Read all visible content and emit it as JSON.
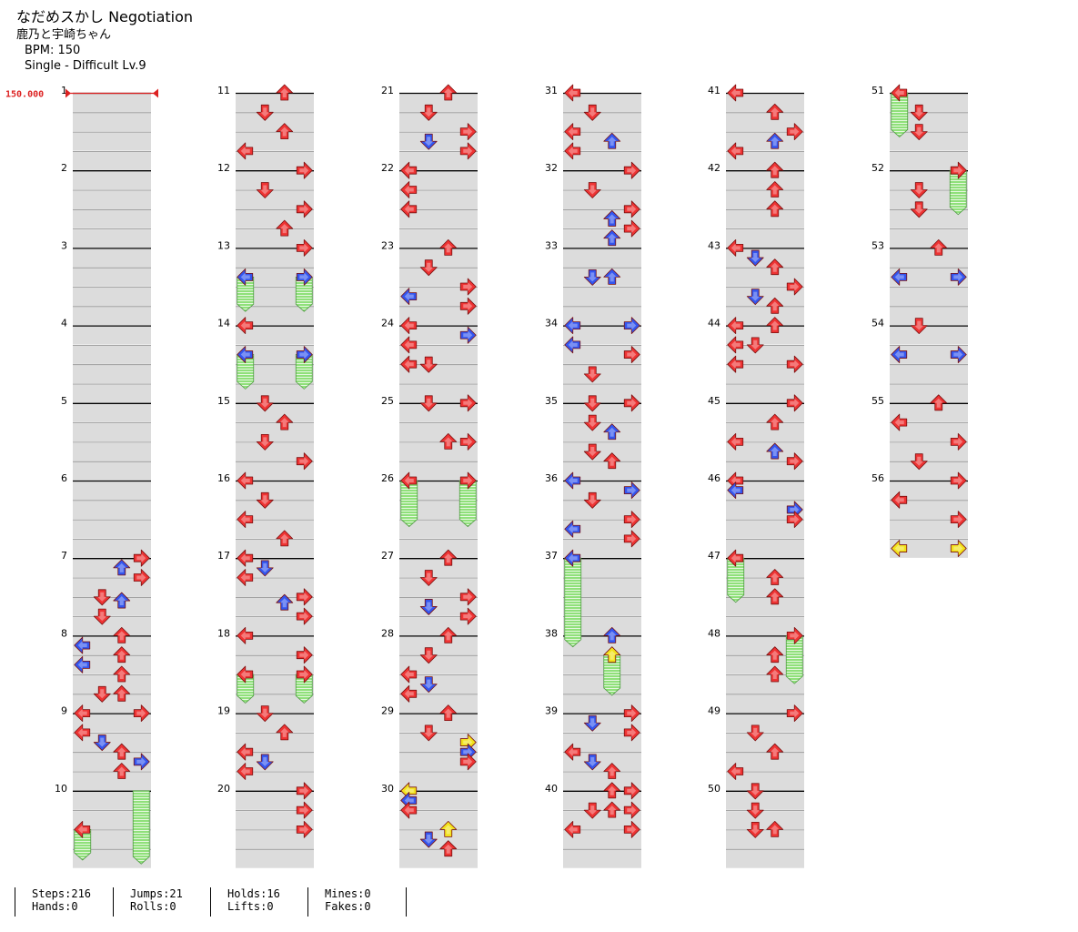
{
  "song": {
    "title": "なだめスかし Negotiation",
    "artist": "鹿乃と宇崎ちゃん",
    "bpm_text": "BPM: 150",
    "difficulty_text": "Single - Difficult Lv.9"
  },
  "bpm_marker": "150.000",
  "measure_count": 56,
  "colors": {
    "red_arrow": "#ee3333",
    "blue_arrow": "#3355ee",
    "yellow_arrow": "#f2e21a",
    "hold_body": "#8fe07a",
    "lane_band": "#dcdcdc",
    "bpm_marker": "#dd2222"
  },
  "stats_rows": [
    [
      "Steps:216",
      "Jumps:21",
      "Holds:16",
      "Mines:0"
    ],
    [
      "Hands:0",
      "Rolls:0",
      "Lifts:0",
      "Fakes:0"
    ]
  ]
}
